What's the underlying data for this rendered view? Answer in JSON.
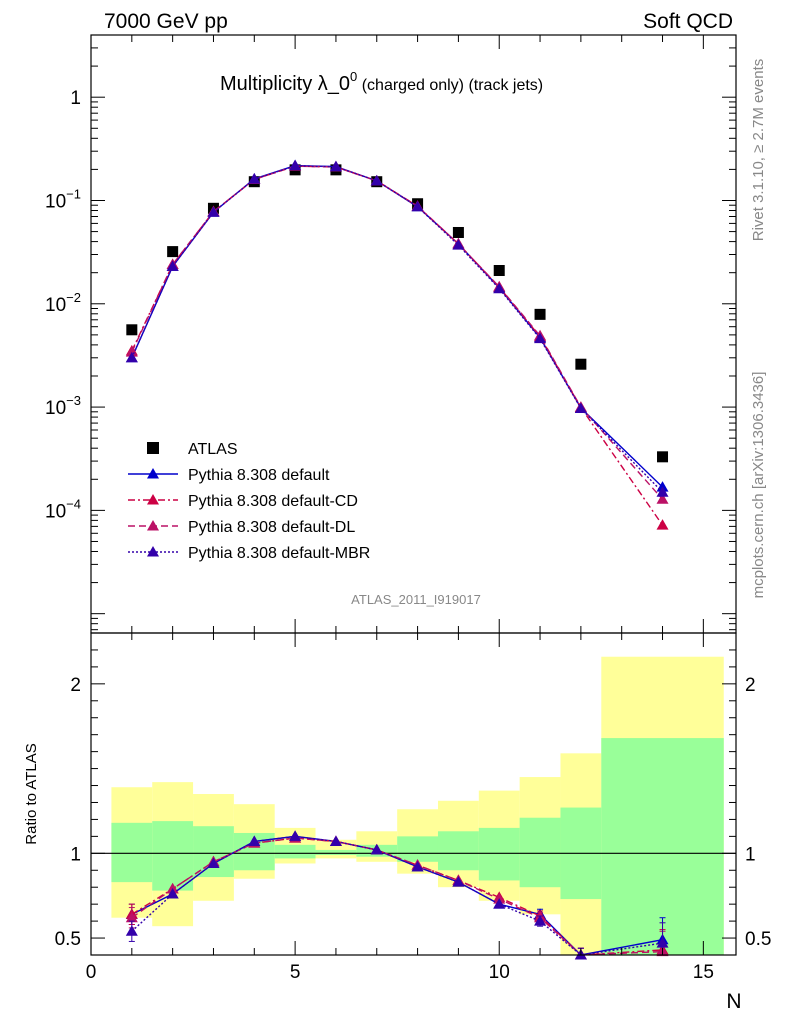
{
  "header": {
    "left": "7000 GeV pp",
    "right": "Soft QCD"
  },
  "plot_title": {
    "main": "Multiplicity λ_0",
    "sup": "0",
    "small": " (charged only) (track jets)"
  },
  "side_text": {
    "rivet": "Rivet 3.1.10, ≥ 2.7M events",
    "mcplots": "mcplots.cern.ch [arXiv:1306.3436]"
  },
  "analysis_id": "ATLAS_2011_I919017",
  "ratio_ylabel": "Ratio to ATLAS",
  "x_axis_label": "N",
  "colors": {
    "data": "#000000",
    "default": "#0000cc",
    "cd": "#cc0044",
    "dl": "#bb1166",
    "mbr": "#3300aa",
    "band_inner": "#99ff99",
    "band_outer": "#ffff99"
  },
  "chart_data": [
    {
      "type": "scatter",
      "panel": "main",
      "yscale": "log",
      "xlim": [
        0,
        15.8
      ],
      "ylim": [
        6.5e-06,
        4
      ],
      "y_ticks": [
        {
          "v": 0.0001,
          "base": "10",
          "exp": "−4"
        },
        {
          "v": 0.001,
          "base": "10",
          "exp": "−3"
        },
        {
          "v": 0.01,
          "base": "10",
          "exp": "−2"
        },
        {
          "v": 0.1,
          "base": "10",
          "exp": "−1"
        },
        {
          "v": 1,
          "base": "1",
          "exp": ""
        }
      ],
      "legend_position": "bottom-left",
      "series": [
        {
          "name": "ATLAS",
          "key": "data",
          "marker": "square",
          "x": [
            1,
            2,
            3,
            4,
            5,
            6,
            7,
            8,
            9,
            10,
            11,
            12,
            14
          ],
          "y": [
            0.0056,
            0.032,
            0.084,
            0.152,
            0.198,
            0.198,
            0.152,
            0.093,
            0.049,
            0.021,
            0.0079,
            0.0026,
            0.00033
          ]
        },
        {
          "name": "Pythia 8.308 default",
          "key": "default",
          "style": "solid",
          "x": [
            1,
            2,
            3,
            4,
            5,
            6,
            7,
            8,
            9,
            10,
            11,
            12,
            14
          ],
          "y": [
            0.003,
            0.023,
            0.077,
            0.162,
            0.218,
            0.213,
            0.155,
            0.087,
            0.038,
            0.0143,
            0.0047,
            0.00098,
            0.000168
          ]
        },
        {
          "name": "Pythia 8.308 default-CD",
          "key": "cd",
          "style": "dashdot",
          "x": [
            1,
            2,
            3,
            4,
            5,
            6,
            7,
            8,
            9,
            10,
            11,
            12,
            14
          ],
          "y": [
            0.0035,
            0.024,
            0.078,
            0.16,
            0.215,
            0.211,
            0.155,
            0.088,
            0.038,
            0.0145,
            0.0048,
            0.00099,
            7.2e-05
          ]
        },
        {
          "name": "Pythia 8.308 default-DL",
          "key": "dl",
          "style": "dashed",
          "x": [
            1,
            2,
            3,
            4,
            5,
            6,
            7,
            8,
            9,
            10,
            11,
            12,
            14
          ],
          "y": [
            0.0034,
            0.024,
            0.078,
            0.16,
            0.215,
            0.211,
            0.155,
            0.088,
            0.038,
            0.0146,
            0.0049,
            0.001,
            0.000128
          ]
        },
        {
          "name": "Pythia 8.308 default-MBR",
          "key": "mbr",
          "style": "dotted",
          "x": [
            1,
            2,
            3,
            4,
            5,
            6,
            7,
            8,
            9,
            10,
            11,
            12,
            14
          ],
          "y": [
            0.003,
            0.023,
            0.077,
            0.161,
            0.217,
            0.212,
            0.155,
            0.087,
            0.037,
            0.014,
            0.0046,
            0.00097,
            0.00015
          ]
        }
      ]
    },
    {
      "type": "line",
      "panel": "ratio",
      "xlim": [
        0,
        15.8
      ],
      "ylim": [
        0.4,
        2.3
      ],
      "x_ticks": [
        0,
        5,
        10,
        15
      ],
      "y_ticks": [
        0.5,
        1,
        2
      ],
      "y_tick_labels": [
        "0.5",
        "1",
        "2"
      ],
      "reference_line": 1,
      "bands": {
        "edges": [
          0.5,
          1.5,
          2.5,
          3.5,
          4.5,
          5.5,
          6.5,
          7.5,
          8.5,
          9.5,
          10.5,
          11.5,
          12.5,
          15.5
        ],
        "inner_low": [
          0.83,
          0.78,
          0.86,
          0.9,
          0.97,
          0.99,
          0.98,
          0.95,
          0.9,
          0.84,
          0.8,
          0.73,
          0.4
        ],
        "inner_high": [
          1.18,
          1.19,
          1.16,
          1.12,
          1.05,
          1.02,
          1.05,
          1.1,
          1.13,
          1.15,
          1.21,
          1.27,
          1.68
        ],
        "outer_low": [
          0.62,
          0.57,
          0.72,
          0.85,
          0.94,
          0.97,
          0.95,
          0.88,
          0.8,
          0.72,
          0.64,
          0.35,
          0.4
        ],
        "outer_high": [
          1.39,
          1.42,
          1.35,
          1.29,
          1.15,
          1.08,
          1.13,
          1.26,
          1.31,
          1.37,
          1.45,
          1.59,
          2.16
        ]
      },
      "series": [
        {
          "name": "Pythia 8.308 default",
          "key": "default",
          "style": "solid",
          "x": [
            1,
            2,
            3,
            4,
            5,
            6,
            7,
            8,
            9,
            10,
            11,
            12,
            14
          ],
          "y": [
            0.64,
            0.76,
            0.94,
            1.07,
            1.1,
            1.07,
            1.02,
            0.92,
            0.83,
            0.7,
            0.64,
            0.36,
            0.49
          ],
          "err": [
            0.06,
            0.02,
            0.01,
            0.01,
            0.01,
            0.01,
            0.01,
            0.01,
            0.01,
            0.02,
            0.03,
            0.08,
            0.13
          ]
        },
        {
          "name": "Pythia 8.308 default-CD",
          "key": "cd",
          "style": "dashdot",
          "x": [
            1,
            2,
            3,
            4,
            5,
            6,
            7,
            8,
            9,
            10,
            11,
            12,
            14
          ],
          "y": [
            0.64,
            0.79,
            0.95,
            1.06,
            1.09,
            1.07,
            1.02,
            0.93,
            0.84,
            0.74,
            0.63,
            0.36,
            0.43
          ],
          "err": [
            0.06,
            0.02,
            0.01,
            0.01,
            0.01,
            0.01,
            0.01,
            0.01,
            0.01,
            0.02,
            0.03,
            0.08,
            0.12
          ]
        },
        {
          "name": "Pythia 8.308 default-DL",
          "key": "dl",
          "style": "dashed",
          "x": [
            1,
            2,
            3,
            4,
            5,
            6,
            7,
            8,
            9,
            10,
            11,
            12,
            14
          ],
          "y": [
            0.62,
            0.79,
            0.95,
            1.06,
            1.09,
            1.07,
            1.02,
            0.93,
            0.84,
            0.73,
            0.62,
            0.36,
            0.42
          ],
          "err": [
            0.06,
            0.02,
            0.01,
            0.01,
            0.01,
            0.01,
            0.01,
            0.01,
            0.01,
            0.02,
            0.03,
            0.08,
            0.12
          ]
        },
        {
          "name": "Pythia 8.308 default-MBR",
          "key": "mbr",
          "style": "dotted",
          "x": [
            1,
            2,
            3,
            4,
            5,
            6,
            7,
            8,
            9,
            10,
            11,
            12,
            14
          ],
          "y": [
            0.54,
            0.76,
            0.94,
            1.07,
            1.1,
            1.07,
            1.02,
            0.92,
            0.83,
            0.7,
            0.6,
            0.36,
            0.47
          ],
          "err": [
            0.06,
            0.02,
            0.01,
            0.01,
            0.01,
            0.01,
            0.01,
            0.01,
            0.01,
            0.02,
            0.03,
            0.08,
            0.12
          ]
        }
      ]
    }
  ]
}
